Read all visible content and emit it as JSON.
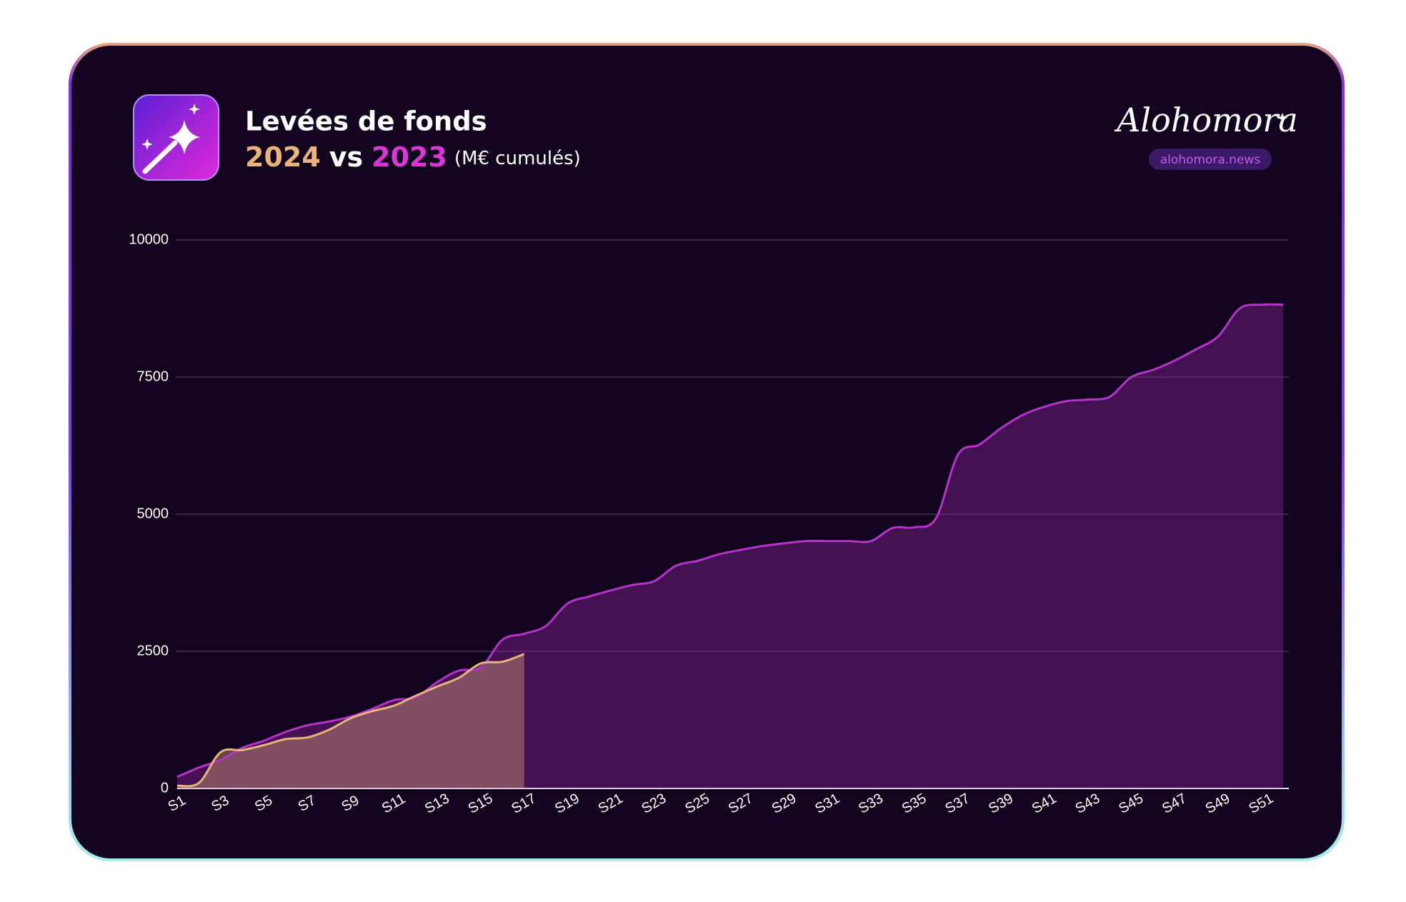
{
  "chart_data": {
    "type": "area",
    "title": "Levées de fonds",
    "subtitle_joiner": "vs",
    "unit_note": "(M€ cumulés)",
    "categories": [
      "S1",
      null,
      "S3",
      null,
      "S5",
      null,
      "S7",
      null,
      "S9",
      null,
      "S11",
      null,
      "S13",
      null,
      "S15",
      null,
      "S17",
      null,
      "S19",
      null,
      "S21",
      null,
      "S23",
      null,
      "S25",
      null,
      "S27",
      null,
      "S29",
      null,
      "S31",
      null,
      "S33",
      null,
      "S35",
      null,
      "S37",
      null,
      "S39",
      null,
      "S41",
      null,
      "S43",
      null,
      "S45",
      null,
      "S47",
      null,
      "S49",
      null,
      "S51",
      null
    ],
    "series": [
      {
        "name": "2024",
        "color": "#e8b47c",
        "values": [
          50,
          100,
          660,
          700,
          790,
          900,
          930,
          1070,
          1280,
          1410,
          1510,
          1690,
          1860,
          2020,
          2280,
          2310,
          2450,
          null,
          null,
          null,
          null,
          null,
          null,
          null,
          null,
          null,
          null,
          null,
          null,
          null,
          null,
          null,
          null,
          null,
          null,
          null,
          null,
          null,
          null,
          null,
          null,
          null,
          null,
          null,
          null,
          null,
          null,
          null,
          null,
          null,
          null,
          null
        ]
      },
      {
        "name": "2023",
        "color": "#b533c8",
        "values": [
          210,
          380,
          520,
          740,
          870,
          1030,
          1150,
          1220,
          1310,
          1450,
          1610,
          1660,
          1940,
          2150,
          2200,
          2710,
          2820,
          2960,
          3370,
          3500,
          3610,
          3710,
          3780,
          4060,
          4150,
          4270,
          4350,
          4420,
          4470,
          4510,
          4510,
          4510,
          4510,
          4750,
          4760,
          4930,
          6080,
          6270,
          6570,
          6810,
          6960,
          7060,
          7090,
          7140,
          7500,
          7630,
          7800,
          8010,
          8240,
          8750,
          8820,
          8820
        ]
      }
    ],
    "ylim": [
      0,
      10000
    ],
    "yticks": [
      0,
      2500,
      5000,
      7500,
      10000
    ],
    "grid": true
  },
  "brand": {
    "name": "Alohomora",
    "url": "alohomora.news"
  }
}
